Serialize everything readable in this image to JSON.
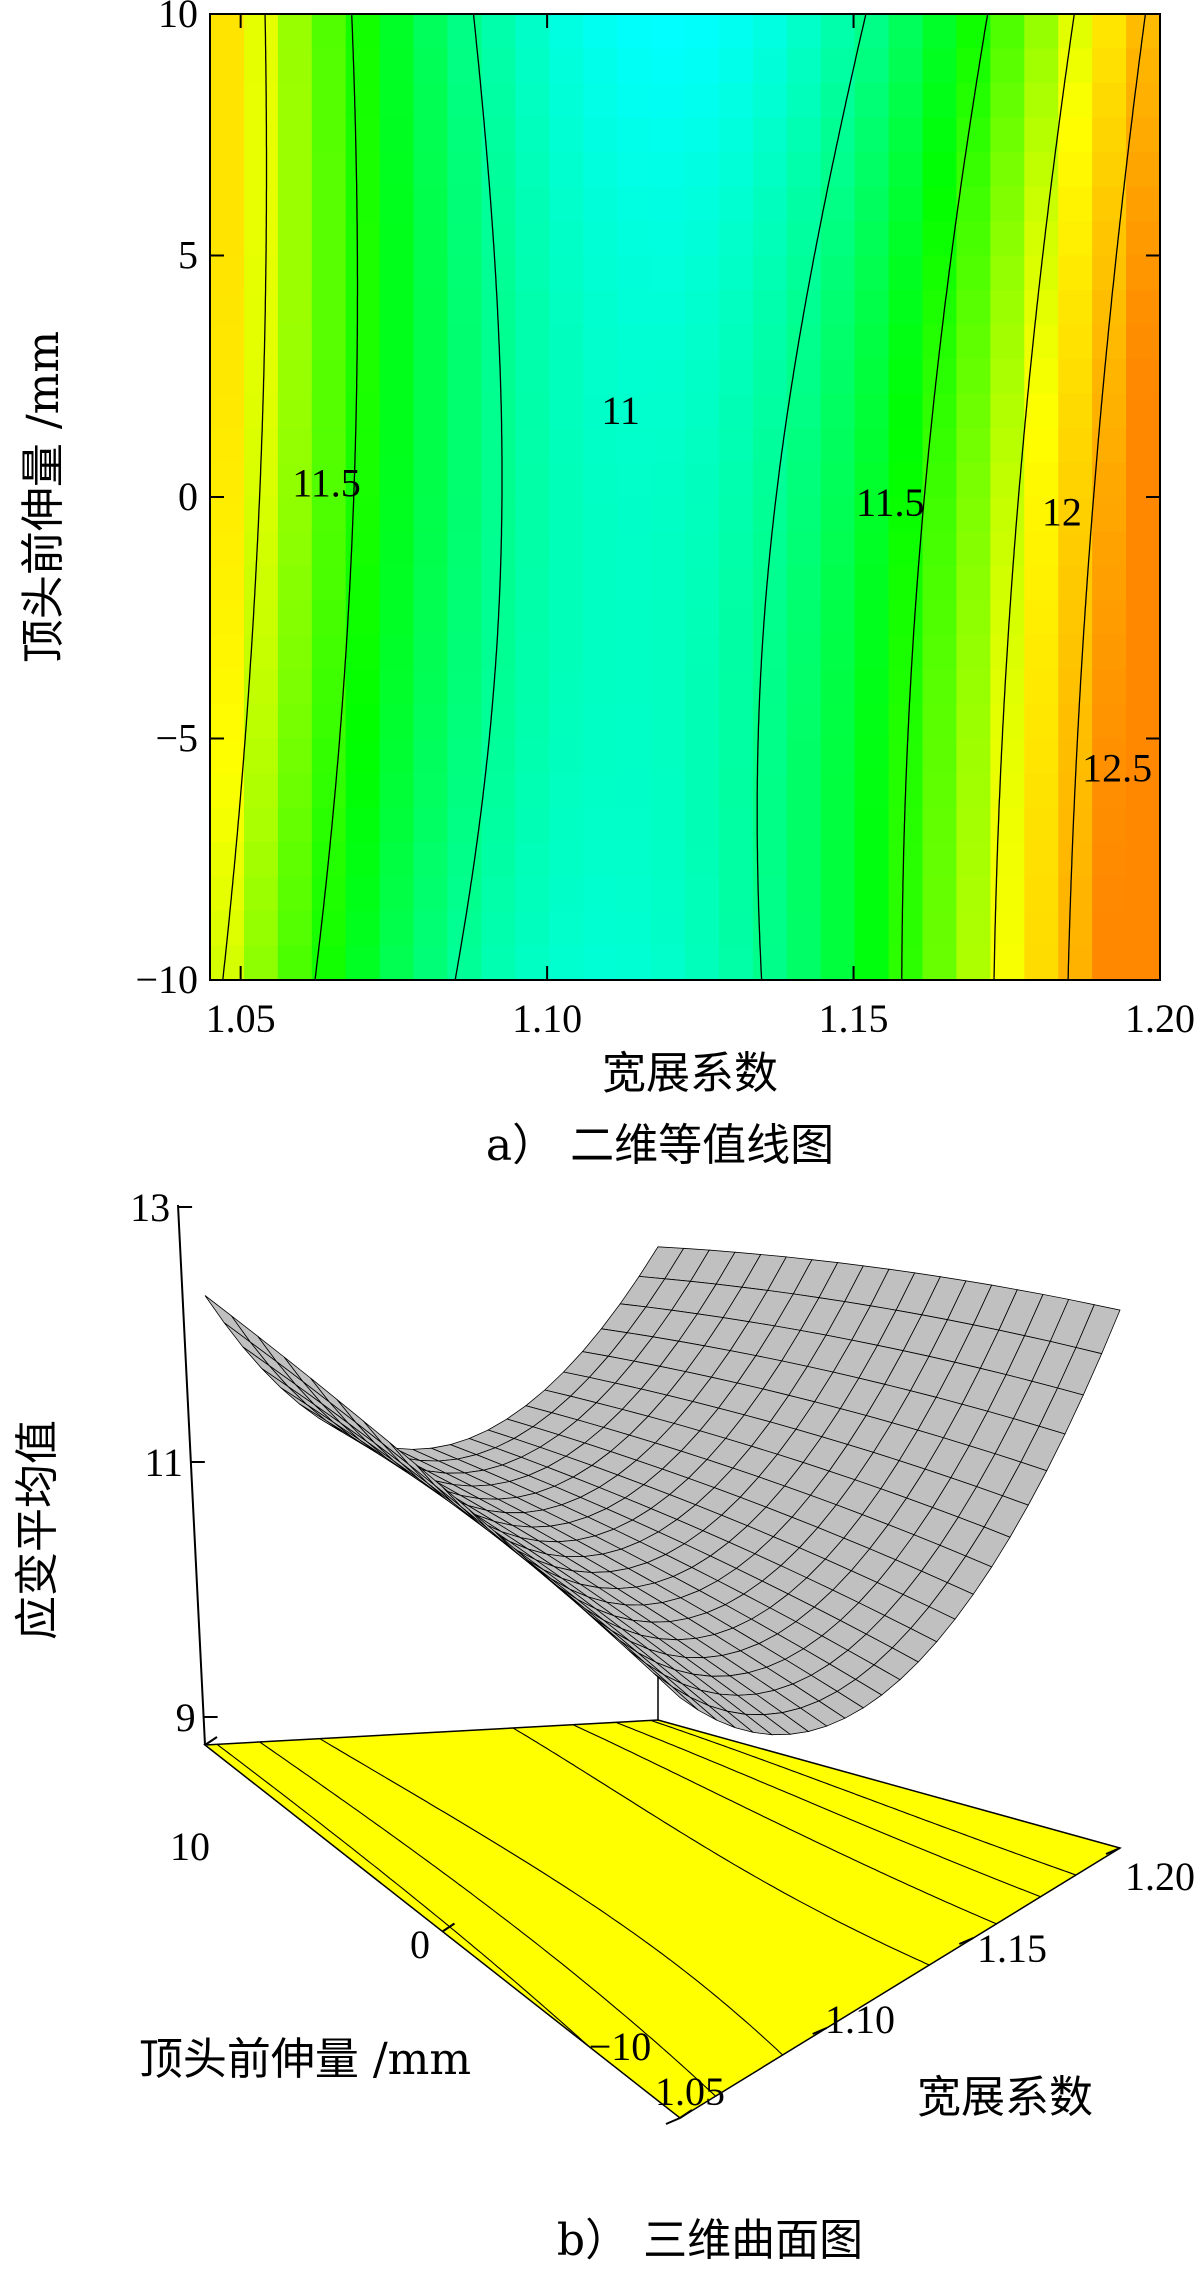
{
  "chart_data": [
    {
      "type": "heatmap",
      "xlabel": "宽展系数",
      "ylabel": "顶头前伸量 /mm",
      "caption": "a）  二维等值线图",
      "xlim": [
        1.045,
        1.2
      ],
      "ylim": [
        -10,
        10
      ],
      "xticks": [
        "1.05",
        "1.10",
        "1.15",
        "1.20"
      ],
      "yticks": [
        "10",
        "5",
        "0",
        "−5",
        "−10"
      ],
      "contours": [
        {
          "level": 11,
          "label": "11"
        },
        {
          "level": 11.5,
          "label": "11.5"
        },
        {
          "level": 11.5,
          "label": "11.5"
        },
        {
          "level": 12,
          "label": "12"
        },
        {
          "level": 12.5,
          "label": "12.5"
        }
      ],
      "zrange": [
        10.7,
        12.8
      ],
      "colormap": [
        "#00ffff",
        "#00ff00",
        "#ffff00",
        "#ff8800"
      ]
    },
    {
      "type": "surface",
      "xlabel": "宽展系数",
      "ylabel": "顶头前伸量 /mm",
      "zlabel": "应变平均值",
      "caption": "b）  三维曲面图",
      "xticks": [
        "1.05",
        "1.10",
        "1.15",
        "1.20"
      ],
      "yticks": [
        "10",
        "0",
        "−10"
      ],
      "zticks": [
        "13",
        "11",
        "9"
      ],
      "zlim": [
        8,
        13
      ],
      "surface_color": "#c0c0c0",
      "floor_color": "#ffff00"
    }
  ]
}
